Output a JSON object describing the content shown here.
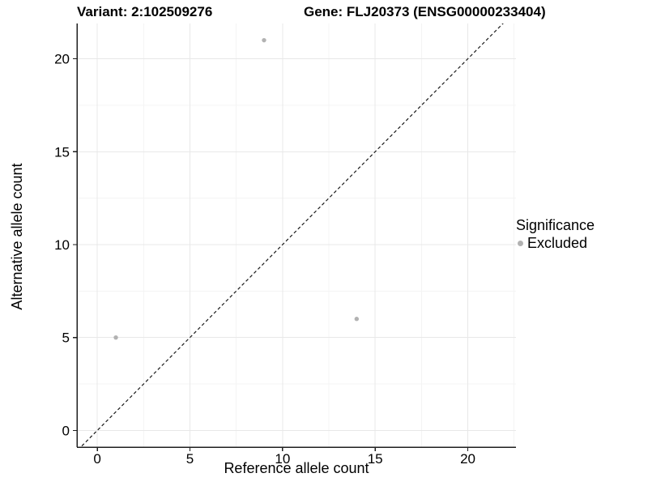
{
  "header": {
    "variant_title": "Variant: 2:102509276",
    "gene_title": "Gene: FLJ20373 (ENSG00000233404)"
  },
  "legend": {
    "title": "Significance",
    "items": [
      {
        "label": "Excluded",
        "marker": "dot-icon",
        "color": "#b2b2b2"
      }
    ]
  },
  "chart_data": {
    "type": "scatter",
    "titles": [
      "Variant: 2:102509276",
      "Gene: FLJ20373 (ENSG00000233404)"
    ],
    "xlabel": "Reference allele count",
    "ylabel": "Alternative allele count",
    "xlim": [
      -1.1,
      22.6
    ],
    "ylim": [
      -0.9,
      21.9
    ],
    "xticks": [
      0,
      5,
      10,
      15,
      20
    ],
    "yticks": [
      0,
      5,
      10,
      15,
      20
    ],
    "minor_grid_step": 2.5,
    "grid": true,
    "legend_position": "right",
    "series": [
      {
        "name": "Excluded",
        "color": "#b2b2b2",
        "points": [
          {
            "x": 1,
            "y": 5
          },
          {
            "x": 9,
            "y": 21
          },
          {
            "x": 14,
            "y": 6
          }
        ]
      }
    ],
    "reference_line": {
      "name": "identity",
      "slope": 1,
      "intercept": 0,
      "style": "dashed",
      "color": "#1a1a1a"
    }
  },
  "colors": {
    "background": "#ffffff",
    "grid_major": "#e8e8e8",
    "grid_minor": "#f4f4f4",
    "axis": "#1f1f1f",
    "text": "#000000",
    "point": "#b2b2b2"
  }
}
